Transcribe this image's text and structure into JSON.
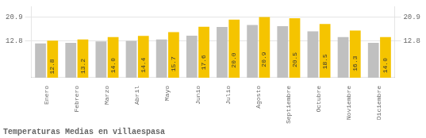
{
  "chart_data": {
    "type": "bar",
    "title": "Temperaturas Medias en villaespasa",
    "categories": [
      "Enero",
      "Febrero",
      "Marzo",
      "Abril",
      "Mayo",
      "Junio",
      "Julio",
      "Agosto",
      "Septiembre",
      "Octubre",
      "Noviembre",
      "Diciembre"
    ],
    "series": [
      {
        "color": "#C0C0C0",
        "values": [
          11.8,
          12.0,
          12.5,
          12.7,
          13.2,
          14.5,
          17.5,
          18.2,
          17.8,
          16.0,
          14.0,
          12.0
        ]
      },
      {
        "color": "#F5C400",
        "values": [
          12.8,
          13.2,
          14.0,
          14.4,
          15.7,
          17.6,
          20.0,
          20.9,
          20.5,
          18.5,
          16.3,
          14.0
        ],
        "data_labels": true,
        "value_labels": [
          "12.8",
          "13.2",
          "14.0",
          "14.4",
          "15.7",
          "17.6",
          "20.0",
          "20.9",
          "20.5",
          "18.5",
          "16.3",
          "14.0"
        ]
      }
    ],
    "ylim": [
      0,
      24.5
    ],
    "yticks": [
      12.8,
      20.9
    ],
    "y2lim": [
      0,
      24.5
    ],
    "y2ticks": [
      12.8,
      20.9
    ],
    "grid": true
  }
}
